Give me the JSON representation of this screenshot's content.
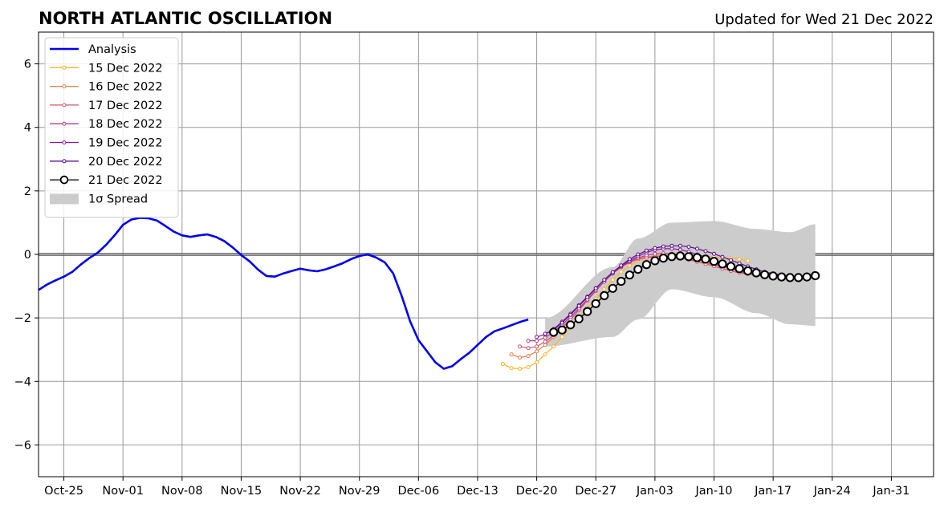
{
  "chart_data": {
    "type": "line",
    "title": "NORTH ATLANTIC OSCILLATION",
    "subtitle": "Updated for Wed 21 Dec 2022",
    "xlabel": "",
    "ylabel": "",
    "xlim": [
      "2022-10-22",
      "2023-02-05"
    ],
    "ylim": [
      -7,
      7
    ],
    "grid": true,
    "zero_line": true,
    "legend_position": "top-left",
    "x_ticks": [
      "Oct-25",
      "Nov-01",
      "Nov-08",
      "Nov-15",
      "Nov-22",
      "Nov-29",
      "Dec-06",
      "Dec-13",
      "Dec-20",
      "Dec-27",
      "Jan-03",
      "Jan-10",
      "Jan-17",
      "Jan-24",
      "Jan-31"
    ],
    "y_ticks": [
      "−6",
      "−4",
      "−2",
      "0",
      "2",
      "4",
      "6"
    ],
    "analysis": {
      "name": "Analysis",
      "color": "#0000ee",
      "x_start": "2022-10-22",
      "values": [
        -1.12,
        -0.95,
        -0.82,
        -0.7,
        -0.55,
        -0.32,
        -0.12,
        0.05,
        0.3,
        0.6,
        0.93,
        1.1,
        1.15,
        1.14,
        1.07,
        0.9,
        0.72,
        0.6,
        0.55,
        0.6,
        0.63,
        0.55,
        0.42,
        0.22,
        -0.02,
        -0.22,
        -0.48,
        -0.68,
        -0.7,
        -0.6,
        -0.52,
        -0.45,
        -0.5,
        -0.53,
        -0.47,
        -0.38,
        -0.28,
        -0.15,
        -0.05,
        0.0,
        -0.1,
        -0.25,
        -0.6,
        -1.3,
        -2.1,
        -2.7,
        -3.05,
        -3.4,
        -3.6,
        -3.52,
        -3.3,
        -3.1,
        -2.85,
        -2.6,
        -2.42,
        -2.33,
        -2.23,
        -2.13,
        -2.05
      ]
    },
    "forecasts": [
      {
        "name": "15 Dec 2022",
        "color": "#ffb427",
        "x_start": "2022-12-16",
        "values": [
          -3.45,
          -3.58,
          -3.6,
          -3.55,
          -3.4,
          -3.15,
          -2.9,
          -2.6,
          -2.3,
          -2.0,
          -1.7,
          -1.4,
          -1.1,
          -0.8,
          -0.55,
          -0.35,
          -0.2,
          -0.1,
          -0.05,
          0.0,
          0.02,
          0.02,
          0.0,
          -0.02,
          -0.05,
          -0.08,
          -0.1,
          -0.12,
          -0.15,
          -0.2
        ]
      },
      {
        "name": "16 Dec 2022",
        "color": "#ee7b48",
        "x_start": "2022-12-17",
        "values": [
          -3.15,
          -3.25,
          -3.2,
          -3.05,
          -2.85,
          -2.6,
          -2.35,
          -2.05,
          -1.75,
          -1.45,
          -1.15,
          -0.85,
          -0.6,
          -0.4,
          -0.25,
          -0.15,
          -0.08,
          -0.05,
          -0.05,
          -0.08,
          -0.1,
          -0.15,
          -0.2,
          -0.27,
          -0.32,
          -0.37,
          -0.42,
          -0.47,
          -0.5,
          -0.52
        ]
      },
      {
        "name": "17 Dec 2022",
        "color": "#d9536a",
        "x_start": "2022-12-18",
        "values": [
          -2.9,
          -2.95,
          -2.9,
          -2.75,
          -2.55,
          -2.3,
          -2.05,
          -1.75,
          -1.45,
          -1.15,
          -0.85,
          -0.6,
          -0.4,
          -0.25,
          -0.15,
          -0.1,
          -0.07,
          -0.06,
          -0.08,
          -0.12,
          -0.17,
          -0.23,
          -0.3,
          -0.37,
          -0.45,
          -0.52,
          -0.58,
          -0.62,
          -0.65,
          -0.68
        ]
      },
      {
        "name": "18 Dec 2022",
        "color": "#b33b89",
        "x_start": "2022-12-19",
        "values": [
          -2.72,
          -2.72,
          -2.62,
          -2.45,
          -2.22,
          -1.97,
          -1.7,
          -1.42,
          -1.13,
          -0.86,
          -0.6,
          -0.4,
          -0.23,
          -0.11,
          -0.03,
          0.02,
          0.03,
          0.02,
          -0.02,
          -0.08,
          -0.15,
          -0.22,
          -0.3,
          -0.38,
          -0.45,
          -0.53,
          -0.6,
          -0.64,
          -0.67,
          -0.7
        ]
      },
      {
        "name": "19 Dec 2022",
        "color": "#8a18a3",
        "x_start": "2022-12-20",
        "values": [
          -2.6,
          -2.52,
          -2.35,
          -2.12,
          -1.87,
          -1.6,
          -1.33,
          -1.06,
          -0.8,
          -0.57,
          -0.37,
          -0.2,
          -0.06,
          0.06,
          0.14,
          0.18,
          0.18,
          0.15,
          0.08,
          0.0,
          -0.08,
          -0.17,
          -0.27,
          -0.36,
          -0.45,
          -0.53,
          -0.6,
          -0.65,
          -0.68,
          -0.7
        ]
      },
      {
        "name": "20 Dec 2022",
        "color": "#5c0b8f",
        "x_start": "2022-12-21",
        "values": [
          -2.5,
          -2.38,
          -2.15,
          -1.9,
          -1.62,
          -1.35,
          -1.07,
          -0.8,
          -0.56,
          -0.35,
          -0.15,
          0.0,
          0.12,
          0.2,
          0.25,
          0.27,
          0.27,
          0.24,
          0.18,
          0.1,
          0.02,
          -0.08,
          -0.18,
          -0.28,
          -0.38,
          -0.47,
          -0.55,
          -0.61,
          -0.65,
          -0.68
        ]
      },
      {
        "name": "21 Dec 2022",
        "color": "#000000",
        "x_start": "2022-12-22",
        "values": [
          -2.45,
          -2.38,
          -2.22,
          -2.03,
          -1.8,
          -1.55,
          -1.3,
          -1.07,
          -0.85,
          -0.65,
          -0.47,
          -0.32,
          -0.2,
          -0.12,
          -0.07,
          -0.05,
          -0.07,
          -0.1,
          -0.15,
          -0.22,
          -0.3,
          -0.38,
          -0.45,
          -0.52,
          -0.58,
          -0.64,
          -0.68,
          -0.71,
          -0.73,
          -0.73,
          -0.71,
          -0.67
        ]
      }
    ],
    "spread": {
      "name": "1σ Spread",
      "color": "#cccccc",
      "x": [
        "2022-12-21",
        "2022-12-29",
        "2023-01-01",
        "2023-01-05",
        "2023-01-10",
        "2023-01-15",
        "2023-01-19",
        "2023-01-22"
      ],
      "upper": [
        -2.0,
        -0.4,
        0.5,
        1.0,
        1.05,
        0.8,
        0.7,
        0.95
      ],
      "lower": [
        -2.9,
        -2.6,
        -2.05,
        -1.1,
        -1.35,
        -1.85,
        -2.2,
        -2.25
      ]
    },
    "legend": {
      "analysis": "Analysis",
      "spread": "1σ Spread"
    }
  }
}
